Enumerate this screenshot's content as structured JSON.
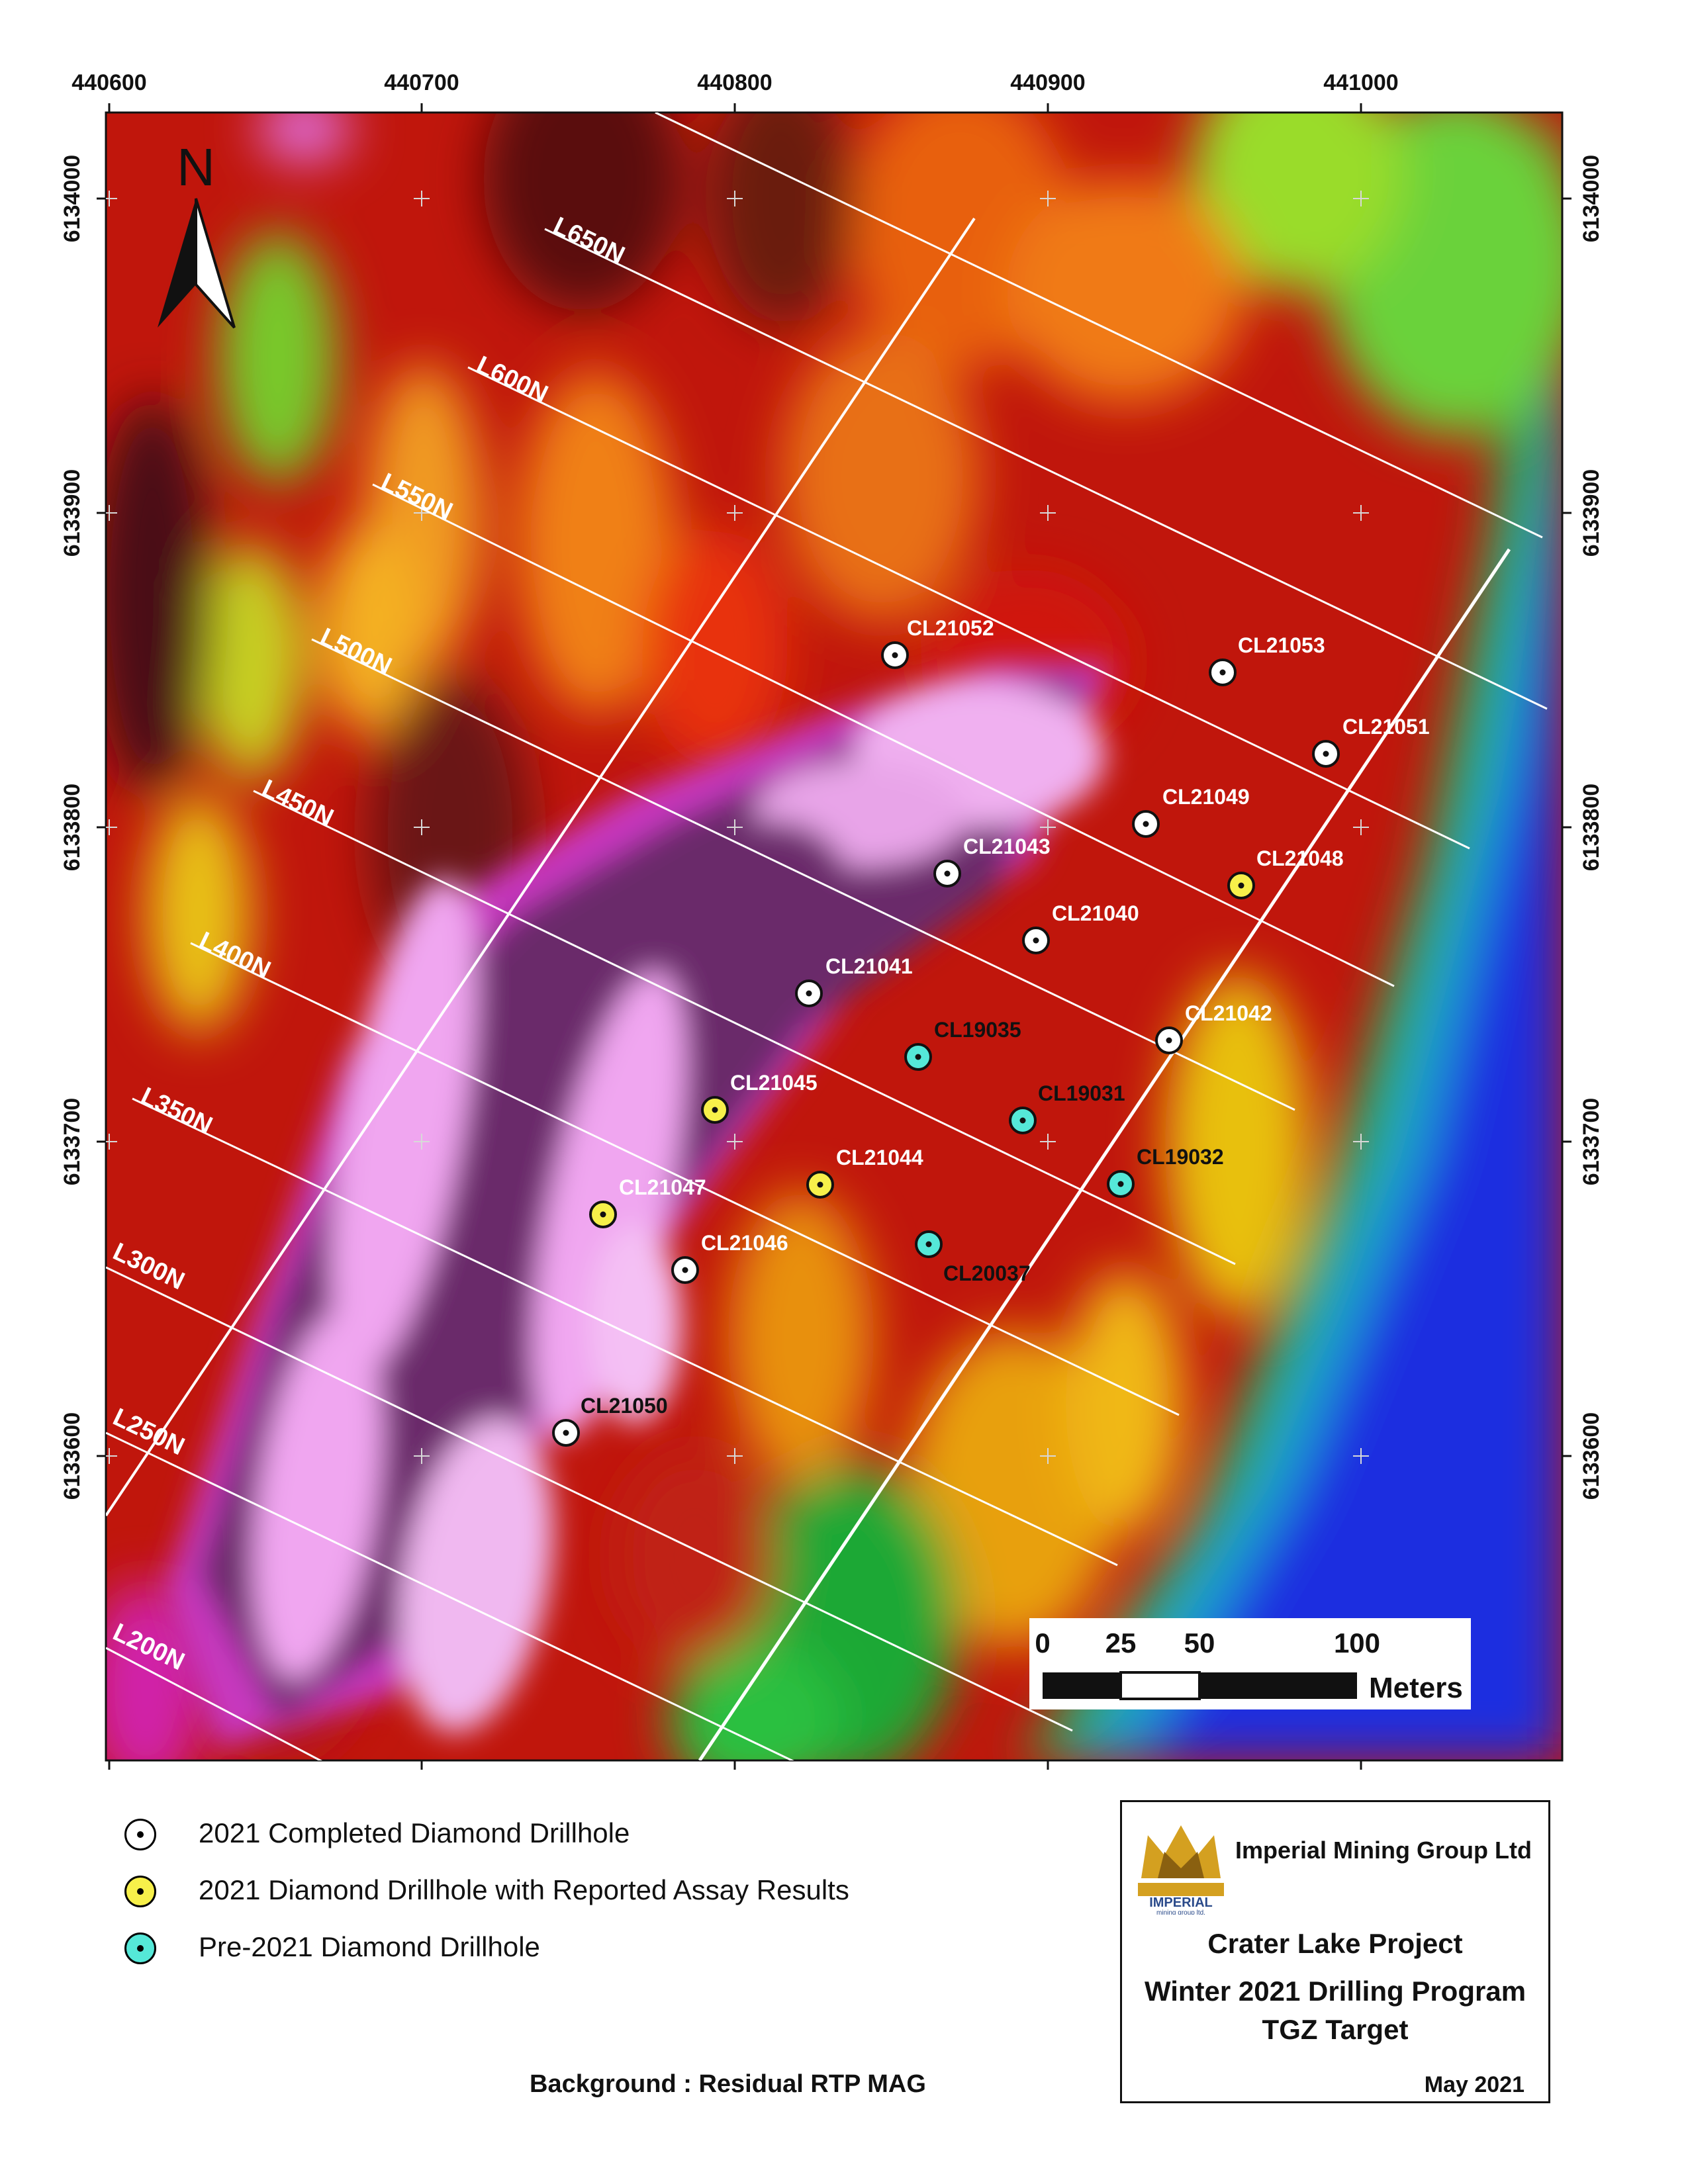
{
  "map": {
    "north_label": "N",
    "x_ticks": [
      "440600",
      "440700",
      "440800",
      "440900",
      "441000"
    ],
    "y_ticks": [
      "6134000",
      "6133900",
      "6133800",
      "6133700",
      "6133600"
    ],
    "survey_lines": [
      "L650N",
      "L600N",
      "L550N",
      "L500N",
      "L450N",
      "L400N",
      "L350N",
      "L300N",
      "L250N",
      "L200N"
    ],
    "drillholes": [
      {
        "id": "CL21052",
        "status": "completed"
      },
      {
        "id": "CL21053",
        "status": "completed"
      },
      {
        "id": "CL21051",
        "status": "completed"
      },
      {
        "id": "CL21049",
        "status": "completed"
      },
      {
        "id": "CL21048",
        "status": "assay"
      },
      {
        "id": "CL21043",
        "status": "completed"
      },
      {
        "id": "CL21040",
        "status": "completed"
      },
      {
        "id": "CL21041",
        "status": "completed"
      },
      {
        "id": "CL21042",
        "status": "completed"
      },
      {
        "id": "CL19035",
        "status": "pre2021"
      },
      {
        "id": "CL19031",
        "status": "pre2021"
      },
      {
        "id": "CL19032",
        "status": "pre2021"
      },
      {
        "id": "CL21045",
        "status": "assay"
      },
      {
        "id": "CL21044",
        "status": "assay"
      },
      {
        "id": "CL21047",
        "status": "assay"
      },
      {
        "id": "CL21046",
        "status": "completed"
      },
      {
        "id": "CL20037",
        "status": "pre2021"
      },
      {
        "id": "CL21050",
        "status": "completed"
      }
    ],
    "scale_bar": {
      "ticks": [
        "0",
        "25",
        "50",
        "100"
      ],
      "unit": "Meters"
    },
    "colors": {
      "completed": "#ffffff",
      "assay": "#f7f04a",
      "pre2021": "#55e8d8",
      "hole_label_white": "#ffffff",
      "hole_label_black": "#111111"
    }
  },
  "legend": {
    "items": [
      {
        "label": "2021 Completed Diamond Drillhole",
        "color": "#ffffff"
      },
      {
        "label": "2021 Diamond Drillhole with Reported Assay Results",
        "color": "#f7f04a"
      },
      {
        "label": "Pre-2021 Diamond Drillhole",
        "color": "#55e8d8"
      }
    ]
  },
  "background_note": "Background : Residual RTP MAG",
  "title_block": {
    "company": "Imperial Mining Group Ltd",
    "logo_text": "IMPERIAL",
    "logo_subtext": "mining group ltd.",
    "project": "Crater Lake Project",
    "program": "Winter 2021 Drilling Program",
    "target": "TGZ Target",
    "date": "May 2021"
  }
}
